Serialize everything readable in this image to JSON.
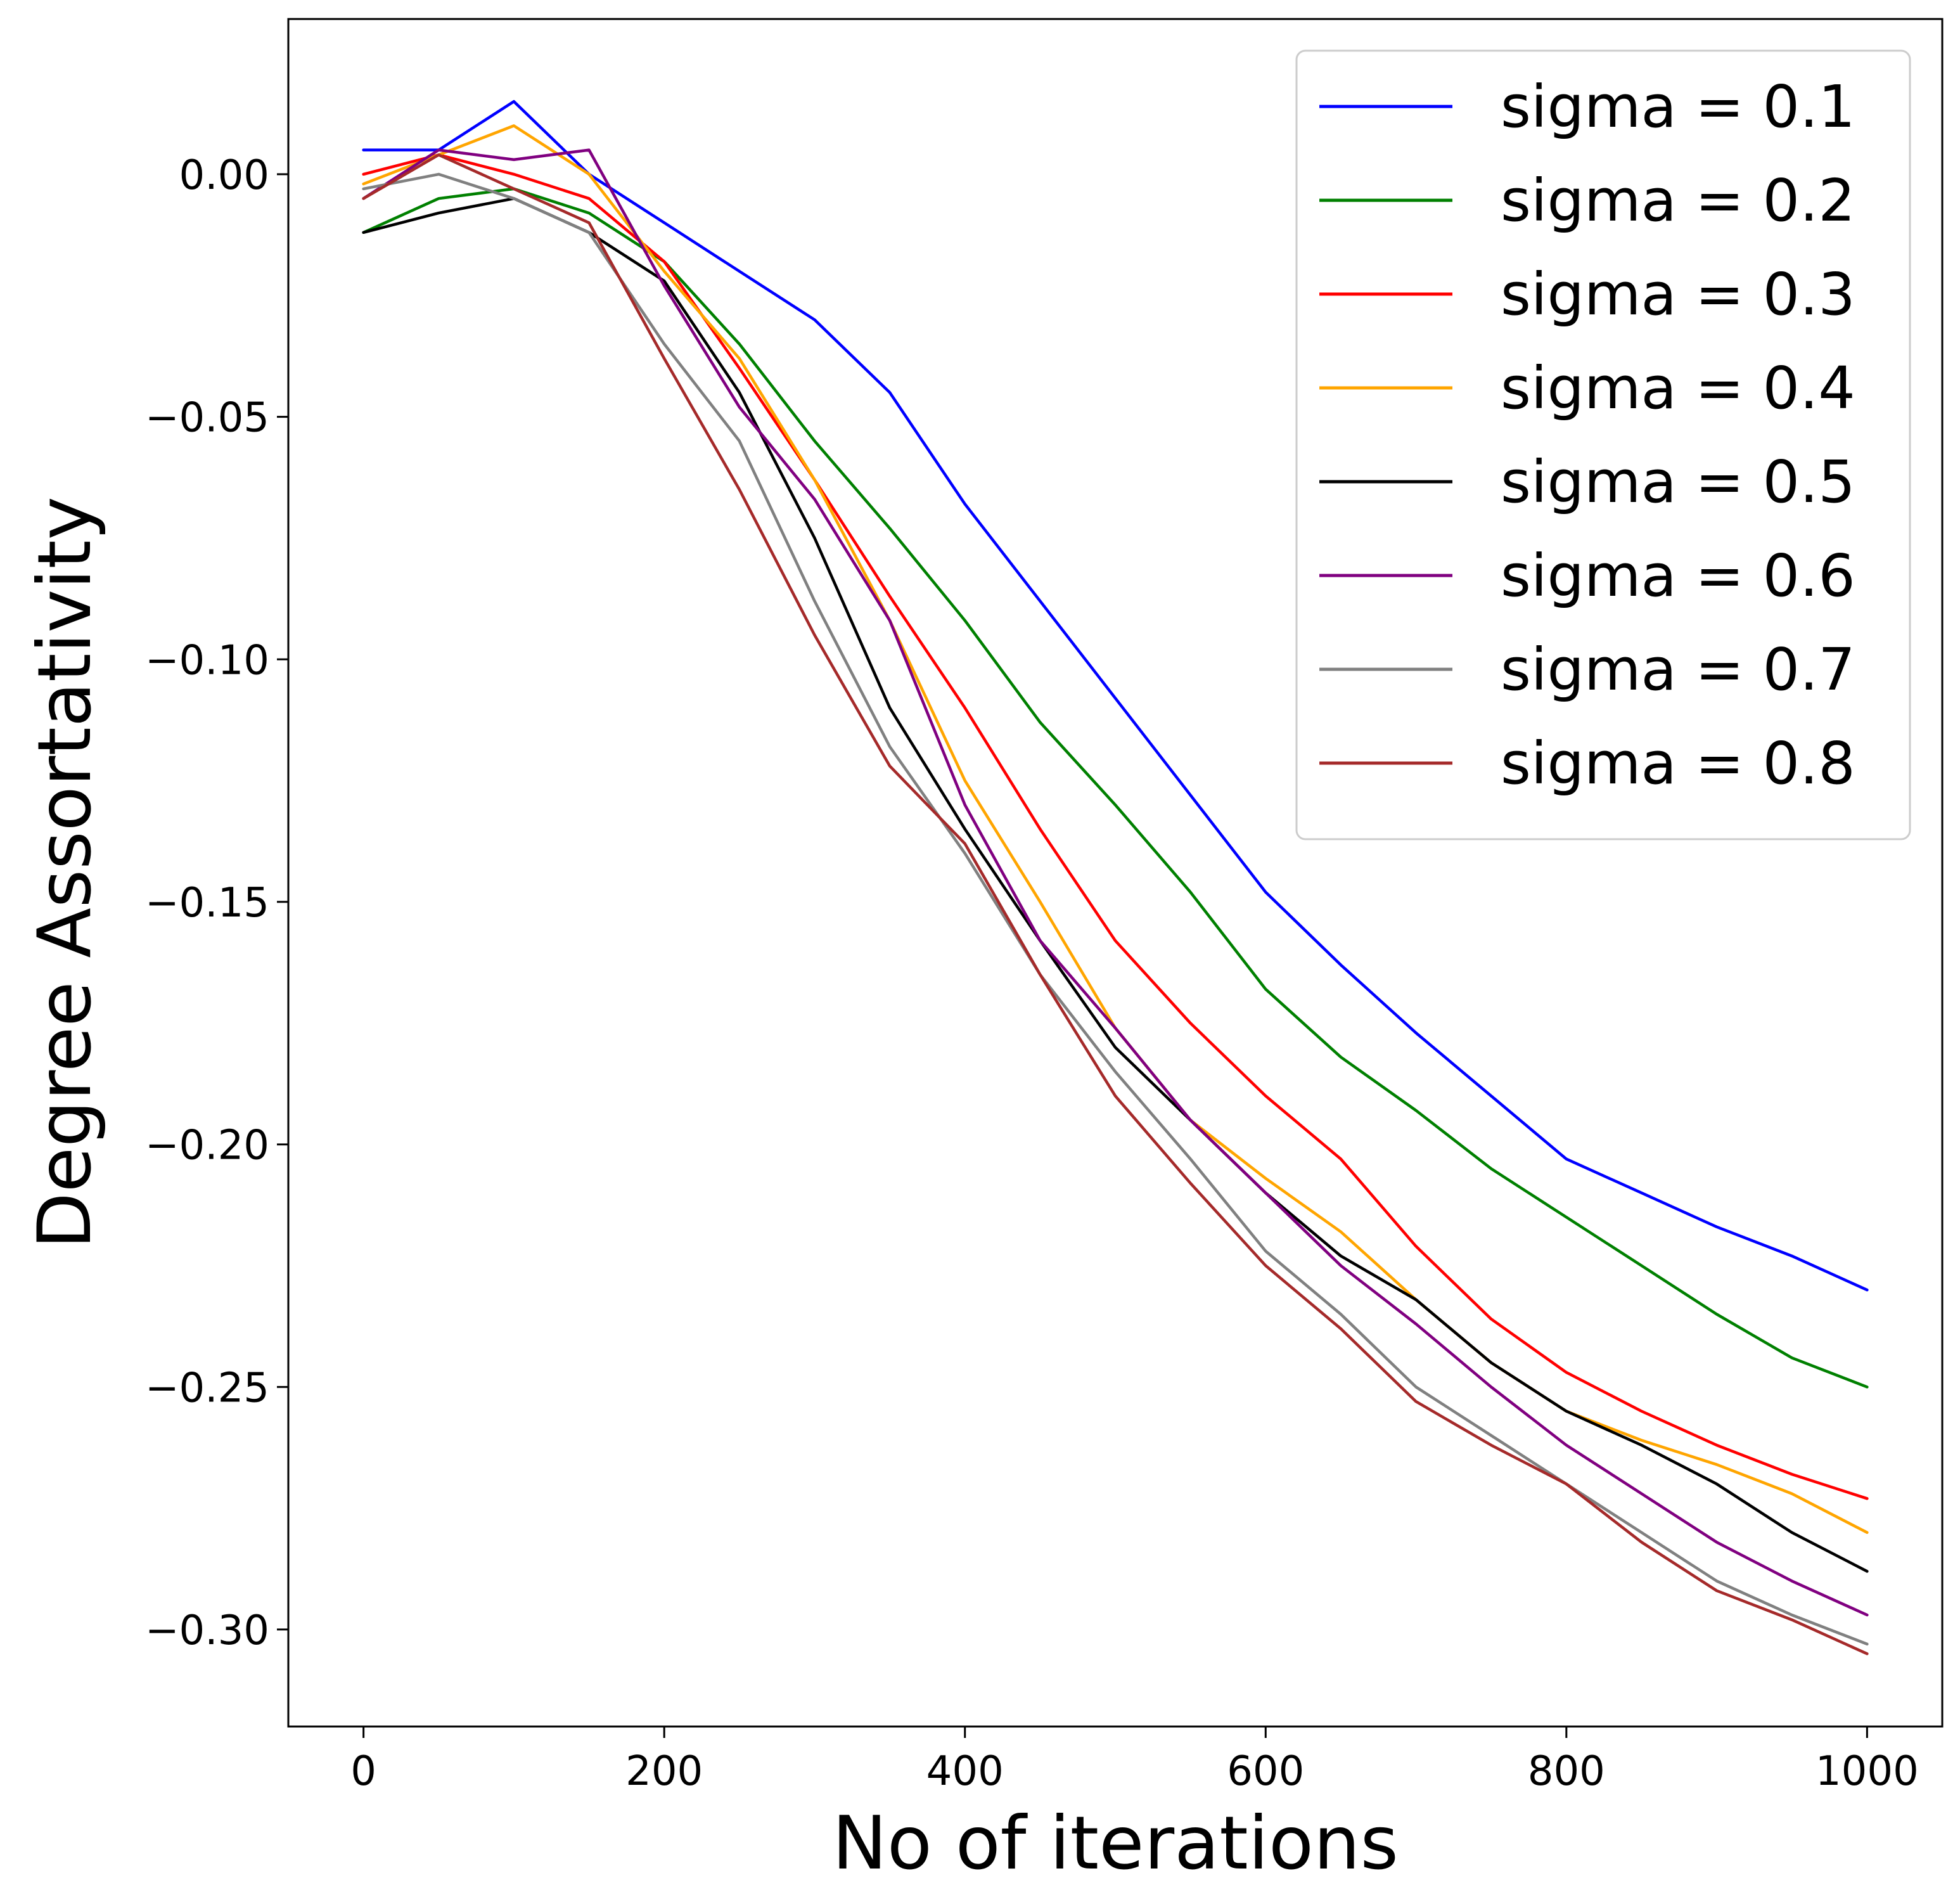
{
  "chart_data": {
    "type": "line",
    "title": "",
    "xlabel": "No of iterations",
    "ylabel": "Degree Assortativity",
    "xlim": [
      -50,
      1050
    ],
    "ylim": [
      -0.32,
      0.032
    ],
    "x_ticks": [
      0,
      200,
      400,
      600,
      800,
      1000
    ],
    "x_tick_labels": [
      "0",
      "200",
      "400",
      "600",
      "800",
      "1000"
    ],
    "y_ticks": [
      0.0,
      -0.05,
      -0.1,
      -0.15,
      -0.2,
      -0.25,
      -0.3
    ],
    "y_tick_labels": [
      "0.00",
      "−0.05",
      "−0.10",
      "−0.15",
      "−0.20",
      "−0.25",
      "−0.30"
    ],
    "grid": false,
    "legend_position": "top-right",
    "x": [
      0,
      50,
      100,
      150,
      200,
      250,
      300,
      350,
      400,
      450,
      500,
      550,
      600,
      650,
      700,
      750,
      800,
      850,
      900,
      950,
      1000
    ],
    "series": [
      {
        "name": "sigma = 0.1",
        "color": "#0000ff",
        "values": [
          0.005,
          0.005,
          0.015,
          0.0,
          -0.01,
          -0.02,
          -0.03,
          -0.045,
          -0.068,
          -0.088,
          -0.108,
          -0.128,
          -0.148,
          -0.163,
          -0.177,
          -0.19,
          -0.203,
          -0.21,
          -0.217,
          -0.223,
          -0.23
        ]
      },
      {
        "name": "sigma = 0.2",
        "color": "#008000",
        "values": [
          -0.012,
          -0.005,
          -0.003,
          -0.008,
          -0.018,
          -0.035,
          -0.055,
          -0.073,
          -0.092,
          -0.113,
          -0.13,
          -0.148,
          -0.168,
          -0.182,
          -0.193,
          -0.205,
          -0.215,
          -0.225,
          -0.235,
          -0.244,
          -0.25
        ]
      },
      {
        "name": "sigma = 0.3",
        "color": "#ff0000",
        "values": [
          0.0,
          0.004,
          0.0,
          -0.005,
          -0.018,
          -0.04,
          -0.063,
          -0.087,
          -0.11,
          -0.135,
          -0.158,
          -0.175,
          -0.19,
          -0.203,
          -0.221,
          -0.236,
          -0.247,
          -0.255,
          -0.262,
          -0.268,
          -0.273
        ]
      },
      {
        "name": "sigma = 0.4",
        "color": "#ffa500",
        "values": [
          -0.002,
          0.004,
          0.01,
          0.0,
          -0.02,
          -0.038,
          -0.063,
          -0.092,
          -0.125,
          -0.15,
          -0.176,
          -0.195,
          -0.207,
          -0.218,
          -0.232,
          -0.245,
          -0.255,
          -0.261,
          -0.266,
          -0.272,
          -0.28
        ]
      },
      {
        "name": "sigma = 0.5",
        "color": "#000000",
        "values": [
          -0.012,
          -0.008,
          -0.005,
          -0.012,
          -0.022,
          -0.045,
          -0.075,
          -0.11,
          -0.135,
          -0.158,
          -0.18,
          -0.195,
          -0.21,
          -0.223,
          -0.232,
          -0.245,
          -0.255,
          -0.262,
          -0.27,
          -0.28,
          -0.288
        ]
      },
      {
        "name": "sigma = 0.6",
        "color": "#800080",
        "values": [
          -0.005,
          0.005,
          0.003,
          0.005,
          -0.023,
          -0.048,
          -0.067,
          -0.092,
          -0.13,
          -0.158,
          -0.176,
          -0.195,
          -0.21,
          -0.225,
          -0.237,
          -0.25,
          -0.262,
          -0.272,
          -0.282,
          -0.29,
          -0.297
        ]
      },
      {
        "name": "sigma = 0.7",
        "color": "#808080",
        "values": [
          -0.003,
          0.0,
          -0.005,
          -0.012,
          -0.035,
          -0.055,
          -0.088,
          -0.118,
          -0.14,
          -0.165,
          -0.185,
          -0.203,
          -0.222,
          -0.235,
          -0.25,
          -0.26,
          -0.27,
          -0.28,
          -0.29,
          -0.297,
          -0.303
        ]
      },
      {
        "name": "sigma = 0.8",
        "color": "#a52a2a",
        "values": [
          -0.005,
          0.004,
          -0.003,
          -0.01,
          -0.038,
          -0.065,
          -0.095,
          -0.122,
          -0.138,
          -0.165,
          -0.19,
          -0.208,
          -0.225,
          -0.238,
          -0.253,
          -0.262,
          -0.27,
          -0.282,
          -0.292,
          -0.298,
          -0.305
        ]
      }
    ]
  }
}
